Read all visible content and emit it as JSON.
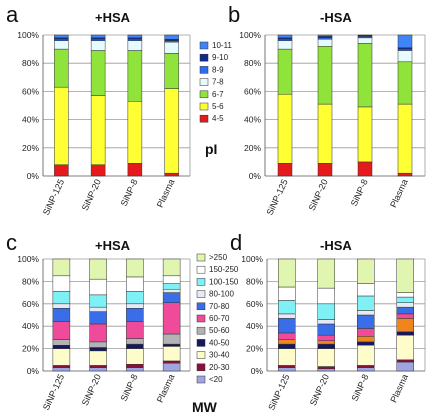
{
  "chart_data": [
    {
      "panel": "a",
      "title": "+HSA",
      "type": "bar",
      "stacked": true,
      "normalized": true,
      "ylim": [
        0,
        100
      ],
      "yticks": [
        "0%",
        "20%",
        "40%",
        "60%",
        "80%",
        "100%"
      ],
      "categories": [
        "SiNP-125",
        "SiNP-20",
        "SiNP-8",
        "Plasma"
      ],
      "legend_title": "pI",
      "series": [
        {
          "name": "4-5",
          "color": "#e41a1c",
          "values": [
            8,
            8,
            9,
            2
          ]
        },
        {
          "name": "5-6",
          "color": "#ffff33",
          "values": [
            55,
            49,
            44,
            60
          ]
        },
        {
          "name": "6-7",
          "color": "#8fe33b",
          "values": [
            27,
            32,
            36,
            25
          ]
        },
        {
          "name": "7-8",
          "color": "#e6fbff",
          "values": [
            6,
            7,
            7,
            8
          ]
        },
        {
          "name": "8-9",
          "color": "#2f6df0",
          "values": [
            1,
            1,
            1,
            1
          ]
        },
        {
          "name": "9-10",
          "color": "#102a8c",
          "values": [
            1,
            1,
            1,
            1
          ]
        },
        {
          "name": "10-11",
          "color": "#3f85f5",
          "values": [
            2,
            2,
            2,
            3
          ]
        }
      ]
    },
    {
      "panel": "b",
      "title": "-HSA",
      "type": "bar",
      "stacked": true,
      "normalized": true,
      "ylim": [
        0,
        100
      ],
      "yticks": [
        "0%",
        "20%",
        "40%",
        "60%",
        "80%",
        "100%"
      ],
      "categories": [
        "SiNP-125",
        "SiNP-20",
        "SiNP-8",
        "Plasma"
      ],
      "series": [
        {
          "name": "4-5",
          "color": "#e41a1c",
          "values": [
            9,
            9,
            10,
            2
          ]
        },
        {
          "name": "5-6",
          "color": "#ffff33",
          "values": [
            49,
            42,
            39,
            49
          ]
        },
        {
          "name": "6-7",
          "color": "#8fe33b",
          "values": [
            32,
            41,
            45,
            30
          ]
        },
        {
          "name": "7-8",
          "color": "#e6fbff",
          "values": [
            6,
            5,
            4,
            8
          ]
        },
        {
          "name": "8-9",
          "color": "#2f6df0",
          "values": [
            1,
            1,
            1,
            1
          ]
        },
        {
          "name": "9-10",
          "color": "#102a8c",
          "values": [
            1,
            1,
            1,
            1
          ]
        },
        {
          "name": "10-11",
          "color": "#3f85f5",
          "values": [
            2,
            1,
            0,
            9
          ]
        }
      ]
    },
    {
      "panel": "c",
      "title": "+HSA",
      "type": "bar",
      "stacked": true,
      "normalized": true,
      "ylim": [
        0,
        100
      ],
      "yticks": [
        "0%",
        "20%",
        "40%",
        "60%",
        "80%",
        "100%"
      ],
      "categories": [
        "SiNP-125",
        "SiNP-20",
        "SiNP-8",
        "Plasma"
      ],
      "legend_title": "MW",
      "series": [
        {
          "name": "<20",
          "color": "#9fa5e0",
          "values": [
            3,
            3,
            3,
            7
          ]
        },
        {
          "name": "20-30",
          "color": "#8a0f3a",
          "values": [
            2,
            2,
            3,
            2
          ]
        },
        {
          "name": "30-40",
          "color": "#fffccc",
          "values": [
            15,
            13,
            14,
            13
          ]
        },
        {
          "name": "40-50",
          "color": "#14185e",
          "values": [
            3,
            3,
            4,
            2
          ]
        },
        {
          "name": "50-60",
          "color": "#b3b3b3",
          "values": [
            5,
            5,
            5,
            9
          ]
        },
        {
          "name": "60-70",
          "color": "#f04a9a",
          "values": [
            16,
            16,
            15,
            28
          ]
        },
        {
          "name": "70-80",
          "color": "#3a6ee8",
          "values": [
            12,
            11,
            12,
            9
          ]
        },
        {
          "name": "80-100",
          "color": "#e7e9f5",
          "values": [
            4,
            4,
            4,
            3
          ]
        },
        {
          "name": "100-150",
          "color": "#7ff0f5",
          "values": [
            11,
            11,
            11,
            5
          ]
        },
        {
          "name": "150-250",
          "color": "#ffffff",
          "values": [
            14,
            14,
            13,
            7
          ]
        },
        {
          "name": ">250",
          "color": "#e0f5b0",
          "values": [
            15,
            18,
            16,
            15
          ]
        }
      ]
    },
    {
      "panel": "d",
      "title": "-HSA",
      "type": "bar",
      "stacked": true,
      "normalized": true,
      "ylim": [
        0,
        100
      ],
      "yticks": [
        "0%",
        "20%",
        "40%",
        "60%",
        "80%",
        "100%"
      ],
      "categories": [
        "SiNP-125",
        "SiNP-20",
        "SiNP-8",
        "Plasma"
      ],
      "series": [
        {
          "name": "<20",
          "color": "#9fa5e0",
          "values": [
            3,
            2,
            3,
            8
          ]
        },
        {
          "name": "20-30",
          "color": "#8a0f3a",
          "values": [
            2,
            2,
            2,
            2
          ]
        },
        {
          "name": "30-40",
          "color": "#fffccc",
          "values": [
            15,
            16,
            18,
            22
          ]
        },
        {
          "name": "40-50",
          "color": "#14185e",
          "values": [
            4,
            4,
            3,
            3
          ]
        },
        {
          "name": "50-60",
          "color": "#f0841f",
          "values": [
            4,
            3,
            5,
            12
          ]
        },
        {
          "name": "60-70",
          "color": "#f04a9a",
          "values": [
            6,
            5,
            7,
            4
          ]
        },
        {
          "name": "70-80",
          "color": "#3a6ee8",
          "values": [
            13,
            10,
            12,
            6
          ]
        },
        {
          "name": "80-100",
          "color": "#e7e9f5",
          "values": [
            4,
            4,
            4,
            4
          ]
        },
        {
          "name": "100-150",
          "color": "#7ff0f5",
          "values": [
            12,
            14,
            13,
            5
          ]
        },
        {
          "name": "150-250",
          "color": "#ffffff",
          "values": [
            12,
            14,
            11,
            4
          ]
        },
        {
          "name": ">250",
          "color": "#e0f5b0",
          "values": [
            25,
            26,
            22,
            30
          ]
        }
      ]
    }
  ]
}
